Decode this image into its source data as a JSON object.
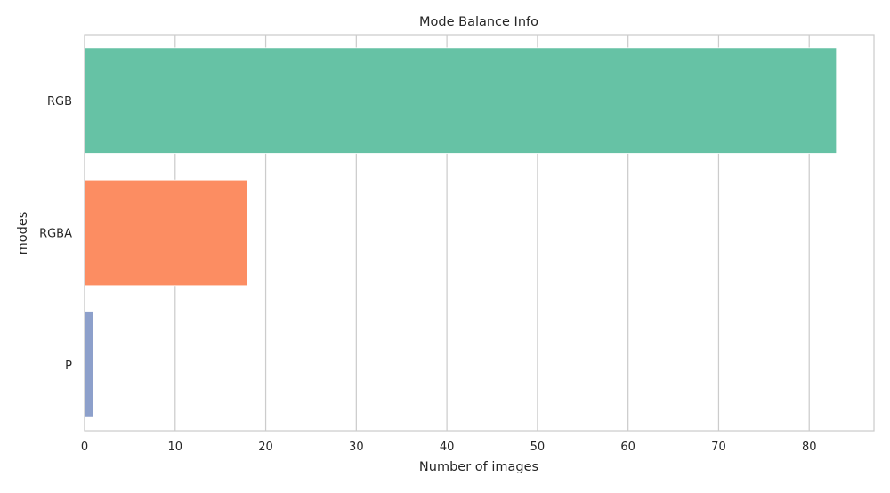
{
  "chart_data": {
    "type": "bar",
    "orientation": "horizontal",
    "title": "Mode Balance Info",
    "xlabel": "Number of images",
    "ylabel": "modes",
    "categories": [
      "RGB",
      "RGBA",
      "P"
    ],
    "values": [
      83,
      18,
      1
    ],
    "colors": [
      "#66c2a5",
      "#fc8d62",
      "#8da0cb"
    ],
    "xlim": [
      0,
      87.15
    ],
    "xticks": [
      0,
      10,
      20,
      30,
      40,
      50,
      60,
      70,
      80
    ],
    "grid": true,
    "grid_axis": "x",
    "grid_color": "#cccccc",
    "spine_color": "#cccccc"
  }
}
